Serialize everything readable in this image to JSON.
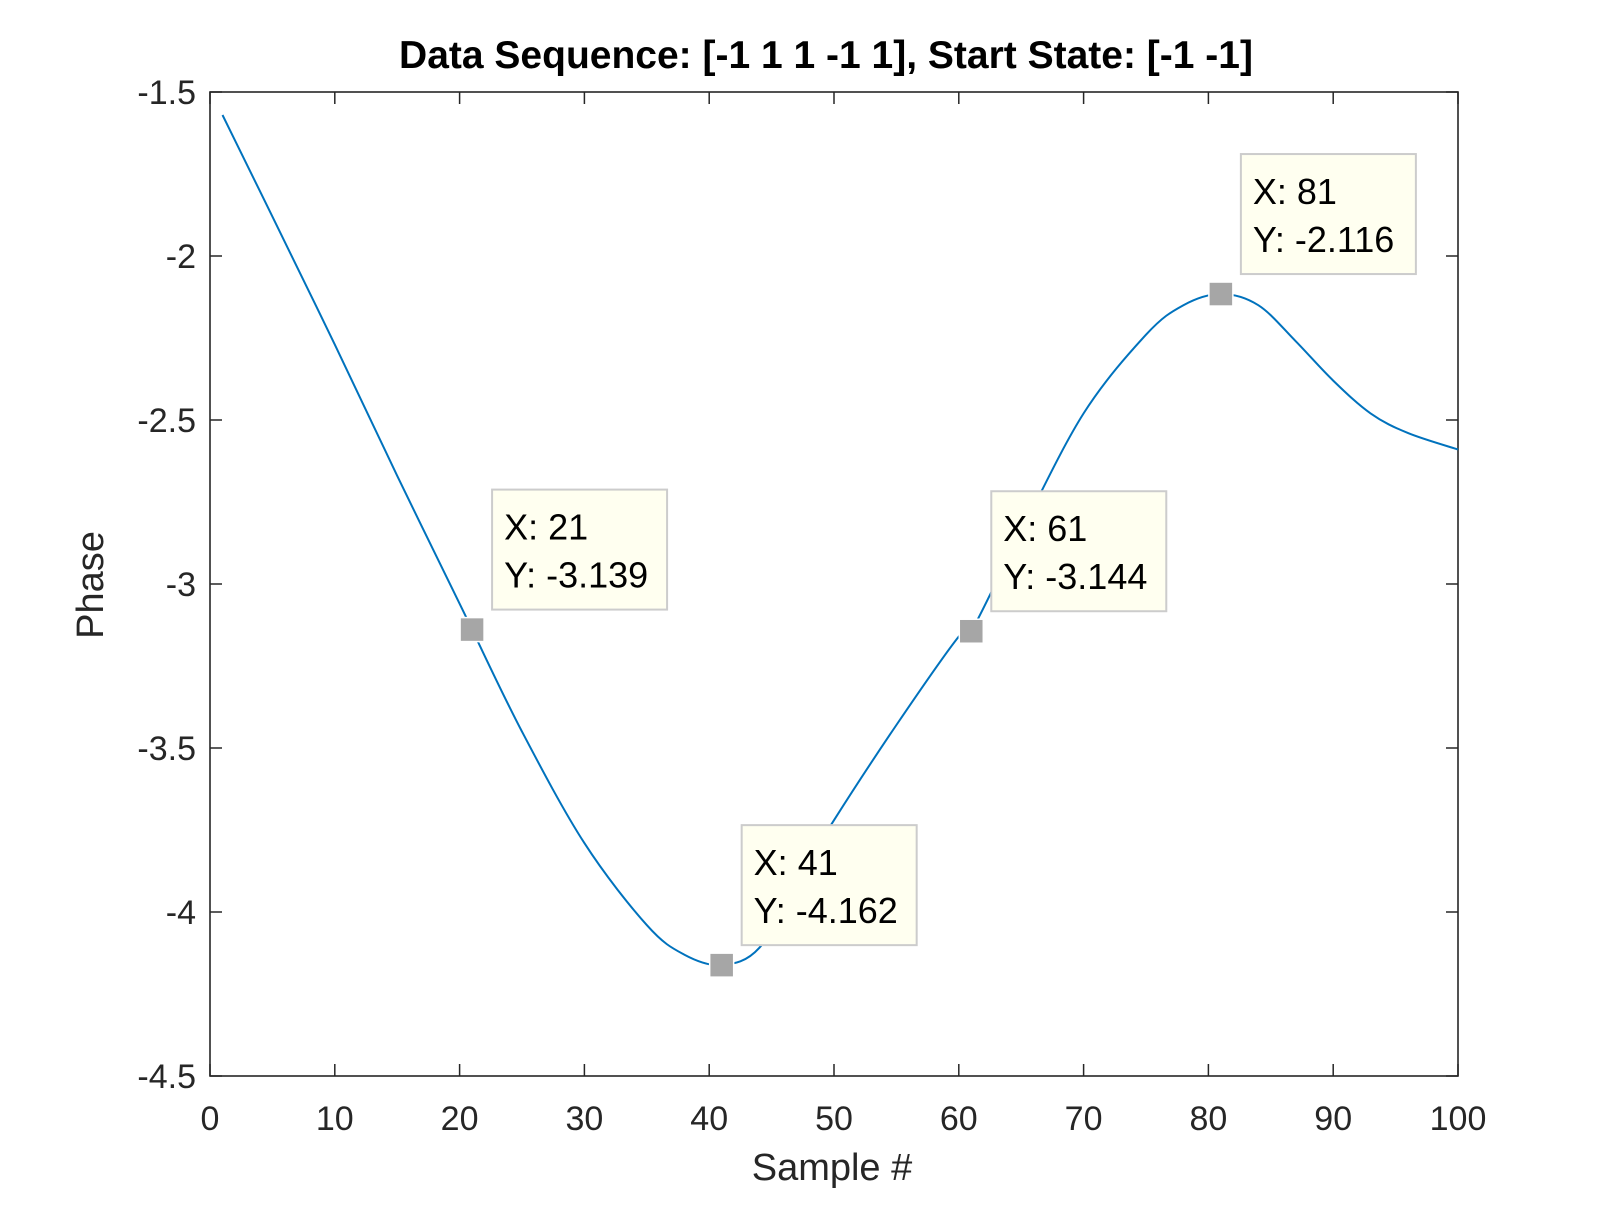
{
  "chart_data": {
    "type": "line",
    "title": "Data Sequence: [-1  1  1 -1  1], Start State: [-1 -1]",
    "xlabel": "Sample #",
    "ylabel": "Phase",
    "xlim": [
      0,
      100
    ],
    "ylim": [
      -4.5,
      -1.5
    ],
    "xticks": [
      0,
      10,
      20,
      30,
      40,
      50,
      60,
      70,
      80,
      90,
      100
    ],
    "yticks": [
      -1.5,
      -2,
      -2.5,
      -3,
      -3.5,
      -4,
      -4.5
    ],
    "xtick_labels": [
      "0",
      "10",
      "20",
      "30",
      "40",
      "50",
      "60",
      "70",
      "80",
      "90",
      "100"
    ],
    "ytick_labels": [
      "-1.5",
      "-2",
      "-2.5",
      "-3",
      "-3.5",
      "-4",
      "-4.5"
    ],
    "grid": false,
    "box": true,
    "series": [
      {
        "color": "#0072bd",
        "x": [
          1,
          5,
          10,
          15,
          20,
          21,
          25,
          30,
          35,
          38,
          41,
          44,
          47,
          50,
          55,
          60,
          61,
          65,
          70,
          75,
          78,
          81,
          84,
          87,
          90,
          93,
          96,
          100
        ],
        "y": [
          -1.57,
          -1.88,
          -2.27,
          -2.67,
          -3.06,
          -3.139,
          -3.45,
          -3.79,
          -4.04,
          -4.13,
          -4.162,
          -4.11,
          -3.91,
          -3.72,
          -3.43,
          -3.16,
          -3.144,
          -2.84,
          -2.48,
          -2.24,
          -2.15,
          -2.116,
          -2.15,
          -2.26,
          -2.38,
          -2.48,
          -2.54,
          -2.59
        ]
      }
    ],
    "datatips": [
      {
        "x": 21,
        "y": -3.139,
        "x_text": "X: 21",
        "y_text": "Y: -3.139"
      },
      {
        "x": 41,
        "y": -4.162,
        "x_text": "X: 41",
        "y_text": "Y: -4.162"
      },
      {
        "x": 61,
        "y": -3.144,
        "x_text": "X: 61",
        "y_text": "Y: -3.144"
      },
      {
        "x": 81,
        "y": -2.116,
        "x_text": "X: 81",
        "y_text": "Y: -2.116"
      }
    ],
    "colors": {
      "line": "#0072bd",
      "marker": "#a6a6a6",
      "datatip_bg": "#fffff0",
      "datatip_border": "#cccccc",
      "axis": "#262626"
    }
  }
}
